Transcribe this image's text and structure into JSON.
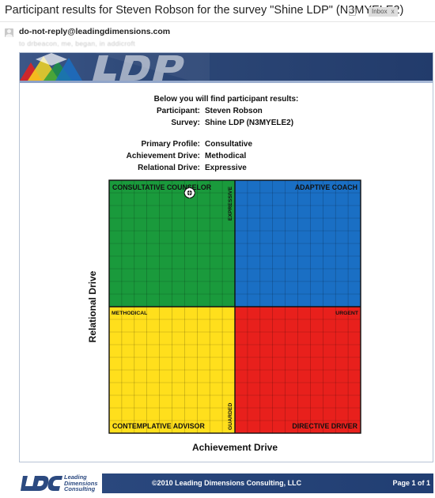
{
  "email": {
    "subject": "Participant results for Steven Robson for the survey \"Shine LDP\" (N3MYELE2)",
    "label_badge": "Inbox",
    "label_badge_close": "x",
    "sender": "do-not-reply@leadingdimensions.com",
    "recipient_line": "to drbeacon, me, began, in addicroft"
  },
  "report": {
    "heading": "Below you will find participant results:",
    "participant_label": "Participant:",
    "participant_value": "Steven Robson",
    "survey_label": "Survey:",
    "survey_value": "Shine LDP (N3MYELE2)",
    "primary_profile_label": "Primary Profile:",
    "primary_profile_value": "Consultative",
    "achievement_drive_label": "Achievement Drive:",
    "achievement_drive_value": "Methodical",
    "relational_drive_label": "Relational Drive:",
    "relational_drive_value": "Expressive"
  },
  "chart_data": {
    "type": "scatter",
    "xlabel": "Achievement Drive",
    "ylabel": "Relational Drive",
    "xlim": [
      0,
      20
    ],
    "ylim": [
      0,
      20
    ],
    "grid": true,
    "quadrants": [
      {
        "name": "CONSULTATIVE COUNSELOR",
        "position": "top-left",
        "color": "#1a9a3c"
      },
      {
        "name": "ADAPTIVE COACH",
        "position": "top-right",
        "color": "#1a6fc4"
      },
      {
        "name": "CONTEMPLATIVE ADVISOR",
        "position": "bottom-left",
        "color": "#ffdf1c"
      },
      {
        "name": "DIRECTIVE DRIVER",
        "position": "bottom-right",
        "color": "#e8201c"
      }
    ],
    "axis_markers": {
      "expressive": "EXPRESSIVE",
      "guarded": "GUARDED",
      "methodical": "METHODICAL",
      "urgent": "URGENT"
    },
    "points": [
      {
        "x": 6.4,
        "y": 19.0
      }
    ]
  },
  "footer": {
    "logo_text_lines": [
      "Leading",
      "Dimensions",
      "Consulting"
    ],
    "copyright": "©2010 Leading Dimensions Consulting, LLC",
    "page": "Page 1 of 1"
  }
}
